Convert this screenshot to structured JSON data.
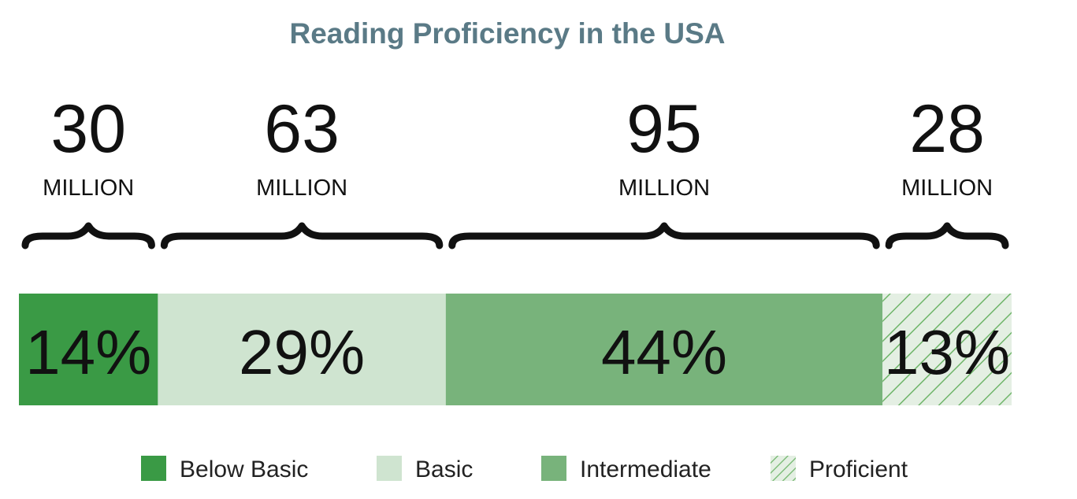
{
  "chart_data": {
    "type": "bar",
    "title": "Reading Proficiency in the USA",
    "categories": [
      "Below Basic",
      "Basic",
      "Intermediate",
      "Proficient"
    ],
    "values": [
      14,
      29,
      44,
      13
    ],
    "value_labels": [
      "14%",
      "29%",
      "44%",
      "13%"
    ],
    "counts": [
      30,
      63,
      95,
      28
    ],
    "count_labels": [
      "30",
      "63",
      "95",
      "28"
    ],
    "count_unit": "MILLION",
    "colors": [
      "#3a9a45",
      "#cfe4d0",
      "#78b37b",
      "#e4efe3"
    ],
    "patterns": [
      "solid",
      "solid",
      "solid",
      "diagonal-hatch"
    ],
    "hatch_color": "#6fb56a",
    "legend": [
      "Below Basic",
      "Basic",
      "Intermediate",
      "Proficient"
    ],
    "legend_position": "bottom"
  }
}
